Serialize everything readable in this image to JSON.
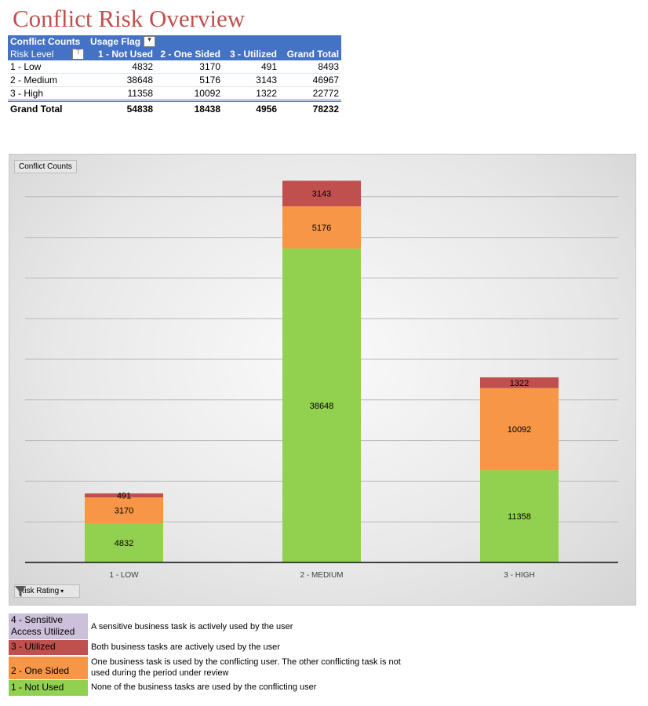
{
  "title": "Conflict Risk Overview",
  "pivot": {
    "corner_label": "Conflict Counts",
    "column_field": "Usage Flag",
    "row_field": "Risk Level",
    "columns": [
      "1 - Not Used",
      "2 - One Sided",
      "3 - Utilized",
      "Grand Total"
    ],
    "rows": [
      {
        "label": "1 - Low",
        "values": [
          "4832",
          "3170",
          "491",
          "8493"
        ]
      },
      {
        "label": "2 - Medium",
        "values": [
          "38648",
          "5176",
          "3143",
          "46967"
        ]
      },
      {
        "label": "3 - High",
        "values": [
          "11358",
          "10092",
          "1322",
          "22772"
        ]
      }
    ],
    "grand_total": {
      "label": "Grand Total",
      "values": [
        "54838",
        "18438",
        "4956",
        "78232"
      ]
    }
  },
  "chart_data": {
    "type": "bar",
    "stacked": true,
    "categories": [
      "1 - LOW",
      "2 - MEDIUM",
      "3 - HIGH"
    ],
    "series": [
      {
        "name": "1 - Not Used",
        "values": [
          4832,
          38648,
          11358
        ],
        "color": "#92d050"
      },
      {
        "name": "2 - One Sided",
        "values": [
          3170,
          5176,
          10092
        ],
        "color": "#f79646"
      },
      {
        "name": "3 - Utilized",
        "values": [
          491,
          3143,
          1322
        ],
        "color": "#c0504d"
      }
    ],
    "ylim": [
      0,
      50000
    ],
    "grid": true,
    "data_labels": true,
    "value_field_button": "Conflict Counts",
    "axis_field_button": "Risk Rating"
  },
  "legend": [
    {
      "label": "4 - Sensitive Access Utilized",
      "description": "A sensitive business task is actively used by the user",
      "color": "#ccc0da"
    },
    {
      "label": "3 - Utilized",
      "description": "Both business tasks are actively used by the user",
      "color": "#c0504d"
    },
    {
      "label": "2 - One Sided",
      "description": "One business task is used by the conflicting user. The other conflicting task is not used during the period under review",
      "color": "#f79646"
    },
    {
      "label": "1 - Not Used",
      "description": "None of the business tasks are used by the conflicting user",
      "color": "#92d050"
    }
  ]
}
